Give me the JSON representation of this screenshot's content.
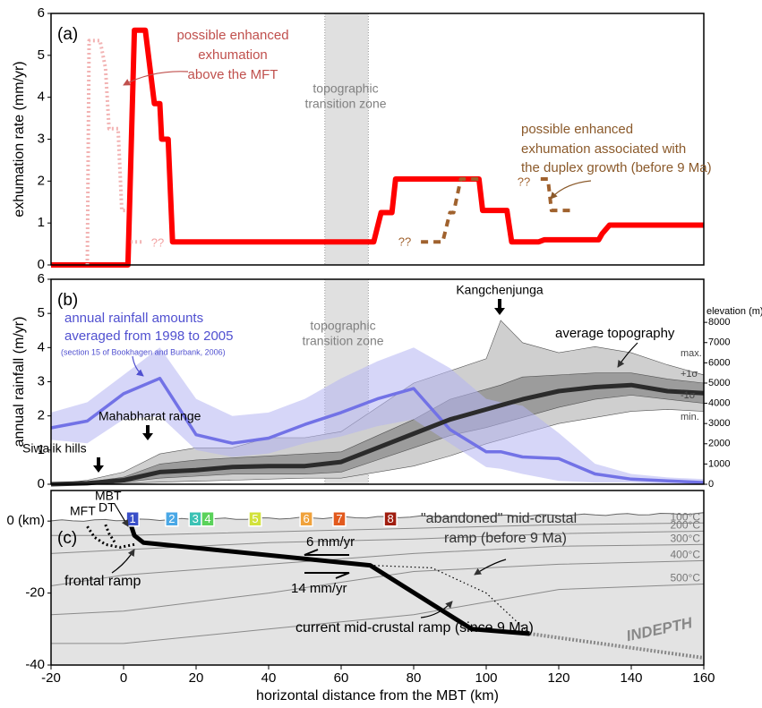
{
  "chart_data": [
    {
      "type": "line",
      "panel": "(a)",
      "ylabel": "exhumation rate (mm/yr)",
      "xlim": [
        -20,
        160
      ],
      "ylim": [
        0,
        6
      ],
      "yticks": [
        0,
        1,
        2,
        3,
        4,
        5,
        6
      ],
      "shade": [
        55.5,
        67.5
      ],
      "shade_color": "#e0e0e0",
      "series": [
        {
          "color": "#ff0000",
          "style": "solid",
          "x": [
            -20,
            1.2,
            3,
            6,
            8.5,
            10,
            10.5,
            12.3,
            13.5,
            69,
            71,
            74,
            75,
            98,
            99,
            105.7,
            107,
            114.5,
            116,
            131,
            132,
            134,
            160
          ],
          "values": [
            0,
            0,
            5.6,
            5.6,
            3.85,
            3.85,
            3.0,
            3.0,
            0.55,
            0.55,
            1.25,
            1.25,
            2.05,
            2.05,
            1.3,
            1.3,
            0.55,
            0.55,
            0.6,
            0.6,
            0.75,
            0.95,
            0.95
          ]
        },
        {
          "color": "#f2b3b3",
          "style": "dotted",
          "x": [
            -10,
            -9.5,
            -6.5,
            -5,
            -4,
            -1.5,
            -0.5,
            0.5,
            1.5,
            2,
            5.5
          ],
          "values": [
            0,
            5.35,
            5.35,
            4.7,
            3.25,
            3.25,
            1.3,
            1.3,
            null,
            0.55,
            0.55
          ]
        },
        {
          "color": "#a0622e",
          "style": "dashed",
          "x": [
            82,
            88,
            90,
            91,
            93,
            98,
            108,
            115,
            117,
            118,
            124
          ],
          "values": [
            0.55,
            0.55,
            1.25,
            1.25,
            2.05,
            2.05,
            null,
            2.05,
            2.05,
            1.3,
            1.3
          ]
        }
      ],
      "annotations": {
        "mft_note": [
          "possible enhanced",
          "exhumation",
          "above the MFT"
        ],
        "zone": [
          "topographic",
          "transition zone"
        ],
        "duplex_note": [
          "possible enhanced",
          "exhumation associated with",
          "the duplex growth (before 9 Ma)"
        ],
        "q_pink": "??",
        "q_brown_1": "??",
        "q_brown_2": "??"
      }
    },
    {
      "type": "line",
      "panel": "(b)",
      "ylabel": "annual rainfall (m/yr)",
      "y2label": "elevation (m)",
      "xlim": [
        -20,
        160
      ],
      "ylim": [
        0,
        6
      ],
      "yticks": [
        0,
        1,
        2,
        3,
        4,
        5,
        6
      ],
      "y2lim": [
        0,
        10130
      ],
      "y2ticks": [
        0,
        1000,
        2000,
        3000,
        4000,
        5000,
        6000,
        7000,
        8000
      ],
      "shade": [
        55.5,
        67.5
      ],
      "shade_color": "#e0e0e0",
      "x": [
        -20,
        -10,
        0,
        10,
        20,
        30,
        40,
        50,
        60,
        70,
        80,
        90,
        100,
        104,
        110,
        120,
        130,
        140,
        150,
        160
      ],
      "bands": [
        {
          "axis": "y2",
          "color": "#cfcfcf",
          "low": [
            0,
            0,
            50,
            100,
            150,
            200,
            250,
            300,
            300,
            600,
            900,
            1400,
            2000,
            2200,
            2500,
            3000,
            3300,
            3600,
            3700,
            3600
          ],
          "high": [
            0,
            200,
            600,
            1500,
            1800,
            1800,
            2300,
            2300,
            2600,
            3800,
            5000,
            5600,
            6200,
            8100,
            7000,
            6500,
            6800,
            6500,
            5900,
            5400
          ]
        },
        {
          "axis": "y2",
          "color": "#9c9c9c",
          "low": [
            0,
            20,
            100,
            300,
            400,
            500,
            500,
            500,
            600,
            1200,
            1800,
            2400,
            2800,
            3000,
            3300,
            3800,
            4200,
            4400,
            4200,
            4000
          ],
          "high": [
            0,
            100,
            350,
            1000,
            1200,
            1300,
            1400,
            1500,
            1600,
            2400,
            3200,
            4200,
            4700,
            4900,
            5300,
            5400,
            5500,
            5500,
            5200,
            5000
          ]
        },
        {
          "axis": "y",
          "color": "#b4b4f2",
          "low": [
            1.3,
            1.2,
            1.9,
            2.0,
            1.0,
            0.8,
            0.9,
            1.2,
            1.4,
            1.7,
            1.9,
            1.2,
            0.5,
            0.45,
            0.3,
            0.1,
            0.05,
            0.05,
            0,
            0
          ],
          "high": [
            2.1,
            2.4,
            3.2,
            4.0,
            2.5,
            2.0,
            2.1,
            2.5,
            3.1,
            3.6,
            4.0,
            3.4,
            2.5,
            2.4,
            2.3,
            1.5,
            0.6,
            0.3,
            0.2,
            0.15
          ]
        }
      ],
      "series": [
        {
          "axis": "y",
          "color": "#7272e6",
          "values": [
            1.65,
            1.85,
            2.65,
            3.1,
            1.45,
            1.2,
            1.35,
            1.75,
            2.1,
            2.5,
            2.8,
            1.6,
            0.95,
            0.95,
            0.8,
            0.75,
            0.3,
            0.15,
            0.1,
            0.05
          ]
        },
        {
          "axis": "y2",
          "color": "#2b2b2b",
          "values": [
            0,
            50,
            200,
            600,
            700,
            850,
            900,
            900,
            1100,
            1800,
            2500,
            3200,
            3700,
            3900,
            4200,
            4600,
            4800,
            4900,
            4600,
            4500
          ]
        }
      ],
      "annotations": {
        "rain_note": [
          "annual rainfall amounts",
          "averaged from 1998 to 2005"
        ],
        "rain_source": "(section 15 of Bookhagen and Burbank, 2006)",
        "zone": [
          "topographic",
          "transition zone"
        ],
        "peak": "Kangchenjunga",
        "avg_topo": "average topography",
        "mahabharat": "Mahabharat range",
        "siwalik": "Siwalik hills",
        "band_labels": [
          "max.",
          "+1σ",
          "-1σ",
          "min."
        ]
      }
    },
    {
      "type": "cross-section",
      "panel": "(c)",
      "xlabel": "horizontal distance from the MBT (km)",
      "xlim": [
        -20,
        160
      ],
      "xticks": [
        -20,
        0,
        20,
        40,
        60,
        80,
        100,
        120,
        140,
        160
      ],
      "ylim": [
        -40,
        8.5
      ],
      "yticks": [
        {
          "value": 0,
          "label": "0 (km)"
        },
        -20,
        -40
      ],
      "isotherms": [
        {
          "label": "100°C",
          "x": [
            -20,
            0,
            40,
            80,
            120,
            160
          ],
          "y": [
            -4,
            -4,
            -3,
            -2,
            -1,
            -0.5
          ]
        },
        {
          "label": "200°C",
          "x": [
            -20,
            0,
            40,
            80,
            120,
            160
          ],
          "y": [
            -9,
            -8,
            -6,
            -5,
            -3.5,
            -2.8
          ]
        },
        {
          "label": "300°C",
          "x": [
            -20,
            0,
            40,
            80,
            120,
            160
          ],
          "y": [
            -18,
            -15,
            -12,
            -9,
            -7,
            -6.5
          ]
        },
        {
          "label": "400°C",
          "x": [
            -20,
            0,
            40,
            80,
            120,
            160
          ],
          "y": [
            -26,
            -25,
            -20,
            -14,
            -12,
            -11
          ]
        },
        {
          "label": "500°C",
          "x": [
            -20,
            0,
            40,
            80,
            120,
            160
          ],
          "y": [
            -34,
            -34,
            -30,
            -26,
            -19,
            -17.5
          ]
        }
      ],
      "faults": [
        {
          "style": "thick",
          "x": [
            2,
            3,
            5.5,
            68,
            96,
            112
          ],
          "y": [
            -1,
            -4,
            -6,
            -12.3,
            -30,
            -31.3
          ]
        },
        {
          "style": "dotted",
          "x": [
            -10,
            -8,
            -5,
            -1,
            3
          ],
          "y": [
            -1.5,
            -4.5,
            -6.5,
            -7.3,
            -6.5
          ]
        },
        {
          "style": "dotted",
          "x": [
            -5,
            -4,
            -2.5
          ],
          "y": [
            -1,
            -3.5,
            -5.8
          ]
        },
        {
          "style": "dotted",
          "x": [
            68,
            85,
            100,
            112
          ],
          "y": [
            -12.3,
            -13,
            -20,
            -31.3
          ]
        },
        {
          "style": "indepth",
          "x": [
            112,
            160
          ],
          "y": [
            -31.3,
            -38
          ]
        }
      ],
      "samples": [
        {
          "label": "1",
          "x": 2.5,
          "color": "#3a4fc8"
        },
        {
          "label": "2",
          "x": 13.3,
          "color": "#4aa8e6"
        },
        {
          "label": "3",
          "x": 19.8,
          "color": "#3cc2b4"
        },
        {
          "label": "4",
          "x": 23.2,
          "color": "#5ad25a"
        },
        {
          "label": "5",
          "x": 36.3,
          "color": "#d2e23c"
        },
        {
          "label": "6",
          "x": 50.4,
          "color": "#f0a23c"
        },
        {
          "label": "7",
          "x": 59.5,
          "color": "#e25a1e"
        },
        {
          "label": "8",
          "x": 73.6,
          "color": "#a01e10"
        }
      ],
      "annotations": {
        "mft": "MFT",
        "dt": "DT",
        "mbt": "MBT",
        "frontal": "frontal ramp",
        "v_upper": "6 mm/yr",
        "v_lower": "14 mm/yr",
        "abandoned": [
          "\"abandoned\" mid-crustal",
          "ramp (before 9 Ma)"
        ],
        "current": "current mid-crustal ramp (since 9 Ma)",
        "indepth": "INDEPTH"
      }
    }
  ]
}
